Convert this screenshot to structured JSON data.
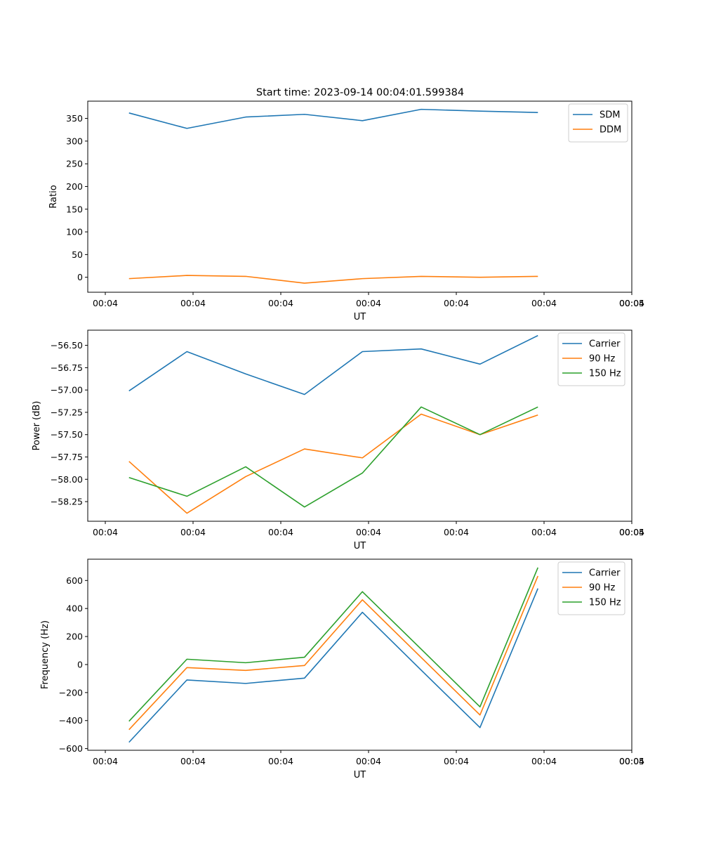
{
  "figure": {
    "title": "Start time: 2023-09-14 00:04:01.599384"
  },
  "chart_data": [
    {
      "type": "line",
      "title": "Start time: 2023-09-14 00:04:01.599384",
      "xlabel": "UT",
      "ylabel": "Ratio",
      "x_tick_labels": [
        "00:04",
        "00:04",
        "00:04",
        "00:04",
        "00:04",
        "00:04",
        "00:04"
      ],
      "x_last_tick_label": "00:05",
      "x_tick_values": [
        0,
        1,
        2,
        3,
        4,
        5,
        6
      ],
      "x_last_tick_value": 6,
      "xlim": [
        -0.2,
        6
      ],
      "x": [
        0.27,
        0.93,
        1.6,
        2.27,
        2.93,
        3.6,
        4.27,
        4.93
      ],
      "ylim": [
        -33,
        388
      ],
      "y_ticks": [
        0,
        50,
        100,
        150,
        200,
        250,
        300,
        350
      ],
      "y_tick_labels": [
        "0",
        "50",
        "100",
        "150",
        "200",
        "250",
        "300",
        "350"
      ],
      "legend_position": "top-right",
      "series": [
        {
          "name": "SDM",
          "color": "#1f77b4",
          "values": [
            362,
            328,
            353,
            359,
            345,
            370,
            366,
            363
          ]
        },
        {
          "name": "DDM",
          "color": "#ff7f0e",
          "values": [
            -3,
            4,
            2,
            -13,
            -3,
            2,
            0,
            2
          ]
        }
      ]
    },
    {
      "type": "line",
      "title": "",
      "xlabel": "UT",
      "ylabel": "Power (dB)",
      "x_tick_labels": [
        "00:04",
        "00:04",
        "00:04",
        "00:04",
        "00:04",
        "00:04",
        "00:04"
      ],
      "x_last_tick_label": "00:05",
      "x_tick_values": [
        0,
        1,
        2,
        3,
        4,
        5,
        6
      ],
      "x_last_tick_value": 6,
      "xlim": [
        -0.2,
        6
      ],
      "x": [
        0.27,
        0.93,
        1.6,
        2.27,
        2.93,
        3.6,
        4.27,
        4.93
      ],
      "ylim": [
        -58.47,
        -56.33
      ],
      "y_ticks": [
        -58.25,
        -58.0,
        -57.75,
        -57.5,
        -57.25,
        -57.0,
        -56.75,
        -56.5
      ],
      "y_tick_labels": [
        "−58.25",
        "−58.00",
        "−57.75",
        "−57.50",
        "−57.25",
        "−57.00",
        "−56.75",
        "−56.50"
      ],
      "legend_position": "top-right",
      "series": [
        {
          "name": "Carrier",
          "color": "#1f77b4",
          "values": [
            -57.01,
            -56.57,
            -56.82,
            -57.05,
            -56.57,
            -56.54,
            -56.71,
            -56.39
          ]
        },
        {
          "name": "90 Hz",
          "color": "#ff7f0e",
          "values": [
            -57.8,
            -58.38,
            -57.97,
            -57.66,
            -57.76,
            -57.27,
            -57.5,
            -57.28
          ]
        },
        {
          "name": "150 Hz",
          "color": "#2ca02c",
          "values": [
            -57.98,
            -58.19,
            -57.86,
            -58.31,
            -57.93,
            -57.19,
            -57.5,
            -57.19
          ]
        }
      ]
    },
    {
      "type": "line",
      "title": "",
      "xlabel": "UT",
      "ylabel": "Frequency (Hz)",
      "x_tick_labels": [
        "00:04",
        "00:04",
        "00:04",
        "00:04",
        "00:04",
        "00:04",
        "00:04"
      ],
      "x_last_tick_label": "00:05",
      "x_tick_values": [
        0,
        1,
        2,
        3,
        4,
        5,
        6
      ],
      "x_last_tick_value": 6,
      "xlim": [
        -0.2,
        6
      ],
      "x": [
        0.27,
        0.93,
        1.6,
        2.27,
        2.93,
        3.6,
        4.27,
        4.93
      ],
      "ylim": [
        -612,
        752
      ],
      "y_ticks": [
        -600,
        -400,
        -200,
        0,
        200,
        400,
        600
      ],
      "y_tick_labels": [
        "−600",
        "−400",
        "−200",
        "0",
        "200",
        "400",
        "600"
      ],
      "legend_position": "top-right",
      "series": [
        {
          "name": "Carrier",
          "color": "#1f77b4",
          "values": [
            -555,
            -110,
            -135,
            -97,
            373,
            -40,
            -450,
            543
          ]
        },
        {
          "name": "90 Hz",
          "color": "#ff7f0e",
          "values": [
            -465,
            -22,
            -42,
            -7,
            462,
            50,
            -360,
            632
          ]
        },
        {
          "name": "150 Hz",
          "color": "#2ca02c",
          "values": [
            -405,
            38,
            13,
            52,
            520,
            110,
            -302,
            692
          ]
        }
      ]
    }
  ]
}
